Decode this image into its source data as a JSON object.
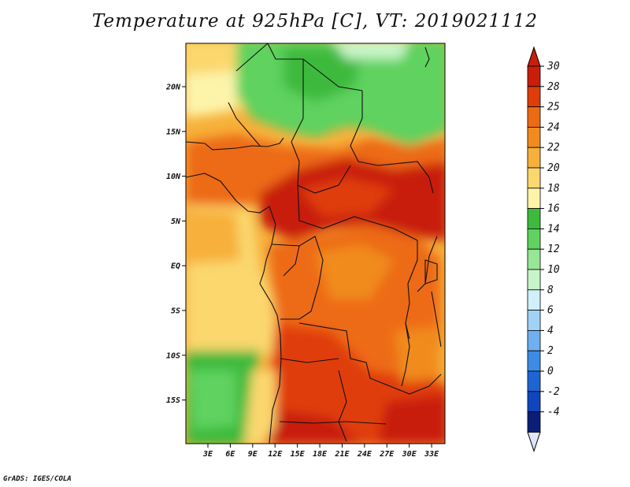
{
  "title": "Temperature at 925hPa [C], VT: 2019021112",
  "credit": "GrADS: IGES/COLA",
  "map": {
    "lat_labels": [
      "20N",
      "15N",
      "10N",
      "5N",
      "EQ",
      "5S",
      "10S",
      "15S"
    ],
    "lat_values": [
      20,
      15,
      10,
      5,
      0,
      -5,
      -10,
      -15
    ],
    "lon_labels": [
      "3E",
      "6E",
      "9E",
      "12E",
      "15E",
      "18E",
      "21E",
      "24E",
      "27E",
      "30E",
      "33E"
    ],
    "lon_values": [
      3,
      6,
      9,
      12,
      15,
      18,
      21,
      24,
      27,
      30,
      33
    ]
  },
  "colorbar": {
    "labels": [
      "30",
      "28",
      "25",
      "24",
      "22",
      "20",
      "18",
      "16",
      "14",
      "12",
      "10",
      "8",
      "6",
      "4",
      "2",
      "0",
      "-2",
      "-4"
    ],
    "colors": [
      "#c81e0a",
      "#e03c0a",
      "#ed6a14",
      "#f18b1e",
      "#f7b03a",
      "#fbd76e",
      "#fdf4aa",
      "#3cba3c",
      "#5fd25f",
      "#96e696",
      "#c8f5c8",
      "#d2f0fa",
      "#a0d2f5",
      "#6eb0f0",
      "#3c8ce6",
      "#1e64d2",
      "#0f46be",
      "#0a1e78"
    ],
    "top_color": "#c81e0a",
    "bottom_color": "#e0e4f8"
  }
}
